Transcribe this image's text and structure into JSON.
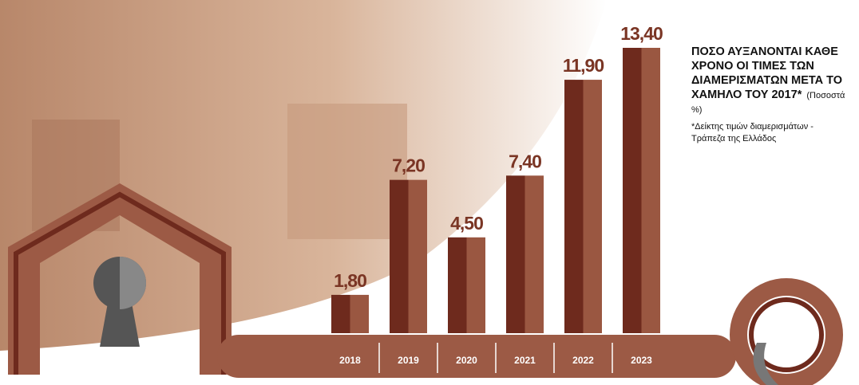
{
  "chart_data": {
    "type": "bar",
    "title": "ΠΟΣΟ ΑΥΞΑΝΟΝΤΑΙ ΚΑΘΕ ΧΡΟΝΟ ΟΙ ΤΙΜΕΣ ΤΩΝ ΔΙΑΜΕΡΙΣΜΑΤΩΝ ΜΕΤΑ ΤΟ ΧΑΜΗΛΟ ΤΟΥ 2017*",
    "subtitle": "(Ποσοστά %)",
    "note": "*Δείκτης τιμών διαμερισμάτων - Τράπεζα της Ελλάδος",
    "categories": [
      "2018",
      "2019",
      "2020",
      "2021",
      "2022",
      "2023"
    ],
    "values": [
      1.8,
      7.2,
      4.5,
      7.4,
      11.9,
      13.4
    ],
    "value_labels": [
      "1,80",
      "7,20",
      "4,50",
      "7,40",
      "11,90",
      "13,40"
    ],
    "color": "#6e2a1d"
  }
}
